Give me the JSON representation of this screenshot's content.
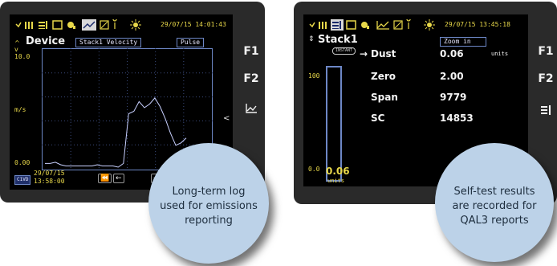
{
  "colors": {
    "bezel": "#2a2a2a",
    "screen": "#000000",
    "text_yellow": "#e8d84a",
    "graph_border": "#6d87c6",
    "bubble": "#bcd2e8"
  },
  "left": {
    "toolbar_datetime": "29/07/15 14:01:43",
    "title": "Device",
    "channel_chip": "Stack1 Velocity",
    "mode_chip": "Pulse",
    "y_max": "10.0",
    "y_unit": "m/s",
    "y_min": "0.00",
    "footer_date": "29/07/15",
    "footer_time": "13:58:00",
    "footer_badge": "C1VD",
    "fkeys": [
      "F1",
      "F2"
    ],
    "bubble_lines": [
      "Long-term log",
      "used for emissions",
      "reporting"
    ]
  },
  "right": {
    "toolbar_datetime": "29/07/15 13:45:18",
    "title": "Stack1",
    "zoom_chip": "Zoom in",
    "instant_badge": "INSTANT",
    "bar_top": "100",
    "bar_bottom": "0.0",
    "bar_value": "0.06",
    "bar_unit": "units",
    "rows": [
      {
        "label": "Dust",
        "value": "0.06",
        "unit": "units"
      },
      {
        "label": "Zero",
        "value": "2.00",
        "unit": ""
      },
      {
        "label": "Span",
        "value": "9779",
        "unit": ""
      },
      {
        "label": "SC",
        "value": "14853",
        "unit": ""
      }
    ],
    "fkeys": [
      "F1",
      "F2"
    ],
    "bubble_lines": [
      "Self-test results",
      "are recorded for",
      "QAL3 reports"
    ]
  },
  "chart_data": {
    "type": "line",
    "title": "",
    "xlabel": "",
    "ylabel": "m/s",
    "ylim": [
      0,
      10
    ],
    "y": [
      0.5,
      0.5,
      0.6,
      0.4,
      0.3,
      0.3,
      0.3,
      0.3,
      0.3,
      0.3,
      0.4,
      0.3,
      0.3,
      0.3,
      0.2,
      0.5,
      4.6,
      4.8,
      5.6,
      5.1,
      5.4,
      5.9,
      5.2,
      4.2,
      3.0,
      2.0,
      2.2,
      2.6
    ],
    "grid": true
  }
}
